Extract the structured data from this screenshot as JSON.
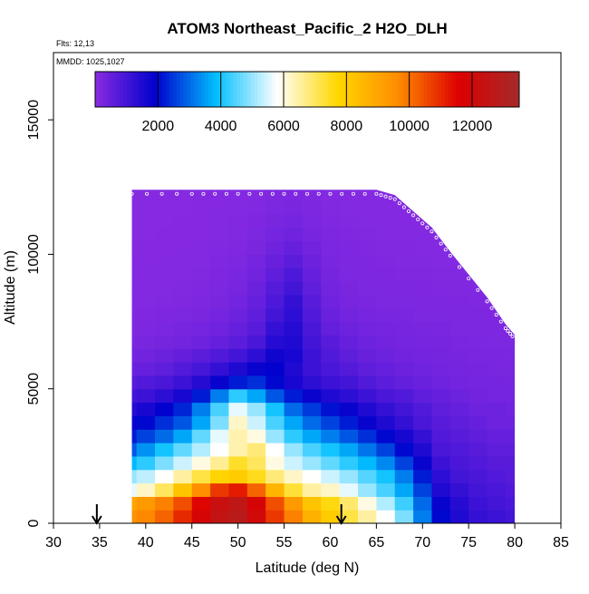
{
  "chart_data": {
    "type": "heatmap",
    "title": "ATOM3 Northeast_Pacific_2 H2O_DLH",
    "annotations": [
      "Flts: 12,13",
      "MMDD: 1025,1027"
    ],
    "xlabel": "Latitude (deg N)",
    "ylabel": "Altitude (m)",
    "xlim": [
      30,
      85
    ],
    "ylim": [
      0,
      17500
    ],
    "x_ticks": [
      "30",
      "35",
      "40",
      "45",
      "50",
      "55",
      "60",
      "65",
      "70",
      "75",
      "80",
      "85"
    ],
    "y_ticks": [
      "0",
      "5000",
      "10000",
      "15000"
    ],
    "colorbar": {
      "range": [
        0,
        13500
      ],
      "ticks": [
        "2000",
        "4000",
        "6000",
        "8000",
        "10000",
        "12000"
      ],
      "colors": [
        "#8a2be2",
        "#0000cd",
        "#00bfff",
        "#ffffff",
        "#ffd700",
        "#ff8c00",
        "#dd0000",
        "#a52a2a"
      ]
    },
    "grid": false,
    "domain_lat": [
      38.5,
      80
    ],
    "domain_top_alt": [
      12400,
      12400,
      12400,
      12400,
      12400,
      12400,
      12200,
      11600,
      11000,
      10100,
      8400,
      7400,
      7000
    ],
    "domain_top_lat": [
      38.5,
      45,
      50,
      55,
      60,
      65,
      67,
      69,
      71,
      73,
      77,
      79,
      80
    ],
    "profile_arrows_lat": [
      34.7,
      61.2
    ],
    "field_lat": [
      38,
      40,
      42,
      44,
      46,
      48,
      50,
      52,
      54,
      56,
      58,
      60,
      62,
      64,
      66,
      68,
      70,
      72,
      74,
      76,
      78,
      80
    ],
    "field_alt": [
      250,
      750,
      1250,
      1750,
      2250,
      2750,
      3250,
      3750,
      4250,
      4750,
      5250,
      5750,
      6250,
      6750,
      7250,
      7750,
      8250,
      8750,
      9250,
      9750,
      10250,
      10750,
      11250,
      11750,
      12250
    ],
    "field_h2o_ppm": [
      [
        9500,
        9700,
        10200,
        11000,
        11800,
        12500,
        12800,
        12000,
        10800,
        9800,
        8700,
        8000,
        7200,
        6500,
        5800,
        4800,
        3200,
        2000,
        1500,
        1200,
        1100,
        1000
      ],
      [
        9000,
        9300,
        9800,
        10500,
        11500,
        12300,
        12600,
        11800,
        10500,
        9300,
        8200,
        7600,
        6900,
        6000,
        5200,
        4300,
        3000,
        1800,
        1400,
        1100,
        1000,
        900
      ],
      [
        5600,
        6200,
        7000,
        8200,
        9600,
        10800,
        11200,
        10200,
        8600,
        7300,
        6500,
        6200,
        5600,
        5000,
        4400,
        3600,
        2600,
        1500,
        1200,
        1000,
        900,
        800
      ],
      [
        5000,
        5300,
        5800,
        6500,
        7200,
        7800,
        8000,
        7500,
        6800,
        6200,
        5800,
        5400,
        5000,
        4500,
        4000,
        3200,
        2200,
        1300,
        1000,
        900,
        800,
        700
      ],
      [
        3800,
        4200,
        4800,
        5400,
        6000,
        6600,
        7400,
        7000,
        6000,
        5400,
        5000,
        4600,
        4200,
        3800,
        3300,
        2600,
        1800,
        1100,
        900,
        800,
        700,
        700
      ],
      [
        2800,
        3400,
        4000,
        4600,
        5200,
        5800,
        6400,
        6800,
        5800,
        5000,
        4400,
        4000,
        3600,
        3100,
        2600,
        2000,
        1500,
        900,
        800,
        700,
        600,
        600
      ],
      [
        2200,
        2600,
        3000,
        3600,
        4600,
        5600,
        6400,
        6000,
        5000,
        4200,
        3600,
        3200,
        2800,
        2400,
        2000,
        1600,
        1200,
        800,
        700,
        600,
        500,
        500
      ],
      [
        1800,
        2000,
        2400,
        2800,
        3600,
        4800,
        6200,
        5400,
        4400,
        3600,
        3000,
        2600,
        2200,
        1800,
        1500,
        1200,
        900,
        700,
        600,
        500,
        400,
        400
      ],
      [
        1400,
        1600,
        1900,
        2300,
        3200,
        4400,
        5600,
        5000,
        4000,
        3000,
        2500,
        2100,
        1800,
        1500,
        1200,
        1000,
        800,
        600,
        500,
        400,
        400,
        350
      ],
      [
        1000,
        1100,
        1300,
        1600,
        2200,
        3200,
        4200,
        3600,
        2800,
        2200,
        1800,
        1500,
        1300,
        1100,
        900,
        800,
        600,
        500,
        400,
        350,
        300,
        300
      ],
      [
        700,
        800,
        900,
        1100,
        1400,
        1800,
        2200,
        2400,
        2000,
        1600,
        1300,
        1100,
        1000,
        800,
        650,
        550,
        450,
        380,
        320,
        300,
        280,
        260
      ],
      [
        450,
        500,
        600,
        750,
        950,
        1200,
        1500,
        1800,
        1900,
        1500,
        1100,
        900,
        750,
        600,
        500,
        420,
        360,
        320,
        280,
        260,
        240,
        230
      ],
      [
        300,
        350,
        420,
        520,
        650,
        800,
        1000,
        1300,
        1700,
        1600,
        1100,
        800,
        600,
        480,
        400,
        350,
        310,
        280,
        250,
        230,
        220,
        210
      ],
      [
        200,
        240,
        280,
        330,
        400,
        500,
        650,
        900,
        1400,
        1500,
        1000,
        700,
        500,
        400,
        340,
        300,
        270,
        250,
        230,
        210,
        200,
        190
      ],
      [
        150,
        180,
        210,
        250,
        300,
        380,
        500,
        700,
        1200,
        1400,
        900,
        550,
        400,
        330,
        290,
        260,
        240,
        220,
        200,
        190,
        180,
        170
      ],
      [
        120,
        140,
        160,
        190,
        230,
        290,
        400,
        600,
        1000,
        1300,
        800,
        450,
        320,
        270,
        240,
        220,
        200,
        190,
        180,
        170,
        160,
        150
      ],
      [
        100,
        110,
        130,
        150,
        180,
        230,
        320,
        500,
        850,
        1200,
        700,
        380,
        270,
        230,
        200,
        190,
        180,
        170,
        160,
        150,
        140,
        130
      ],
      [
        90,
        100,
        110,
        120,
        150,
        190,
        260,
        420,
        720,
        1000,
        600,
        320,
        230,
        200,
        180,
        170,
        160,
        150,
        140,
        130,
        120,
        110
      ],
      [
        80,
        90,
        95,
        105,
        125,
        160,
        220,
        350,
        600,
        850,
        500,
        280,
        200,
        180,
        160,
        150,
        140,
        130,
        120,
        110,
        100,
        100
      ],
      [
        70,
        80,
        85,
        95,
        110,
        135,
        180,
        290,
        480,
        650,
        420,
        240,
        180,
        160,
        140,
        130,
        120,
        110,
        100,
        95,
        90,
        90
      ],
      [
        65,
        70,
        75,
        85,
        100,
        120,
        150,
        230,
        380,
        500,
        340,
        210,
        160,
        140,
        125,
        115,
        105,
        100,
        90,
        85,
        80,
        80
      ],
      [
        60,
        65,
        70,
        78,
        90,
        105,
        130,
        190,
        300,
        380,
        270,
        180,
        140,
        125,
        110,
        100,
        95,
        90,
        85,
        80,
        75,
        70
      ],
      [
        55,
        60,
        65,
        70,
        80,
        95,
        115,
        160,
        240,
        290,
        210,
        150,
        120,
        110,
        100,
        90,
        85,
        80,
        75,
        70,
        65,
        60
      ],
      [
        50,
        55,
        60,
        65,
        75,
        85,
        100,
        130,
        190,
        230,
        170,
        130,
        110,
        100,
        90,
        85,
        80,
        75,
        70,
        65,
        60,
        55
      ],
      [
        45,
        50,
        55,
        60,
        70,
        80,
        90,
        110,
        150,
        180,
        140,
        110,
        95,
        90,
        80,
        75,
        70,
        65,
        60,
        55,
        50,
        50
      ]
    ]
  }
}
